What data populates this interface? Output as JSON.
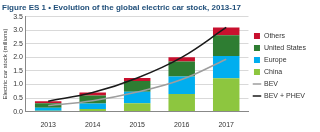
{
  "chart_data": {
    "type": "bar",
    "stacked": true,
    "title": "Figure ES 1 • Evolution of the global electric car stock, 2013-17",
    "y_label": "Electric car stock (millions)",
    "categories": [
      "2013",
      "2014",
      "2015",
      "2016",
      "2017"
    ],
    "series": [
      {
        "name": "China",
        "color": "#8dc63f",
        "type": "bar",
        "values": [
          0.03,
          0.1,
          0.31,
          0.65,
          1.23
        ]
      },
      {
        "name": "Europe",
        "color": "#00aeef",
        "type": "bar",
        "values": [
          0.11,
          0.2,
          0.42,
          0.64,
          0.82
        ]
      },
      {
        "name": "United States",
        "color": "#2e7d32",
        "type": "bar",
        "values": [
          0.17,
          0.29,
          0.4,
          0.56,
          0.76
        ]
      },
      {
        "name": "Others",
        "color": "#c8102e",
        "type": "bar",
        "values": [
          0.07,
          0.11,
          0.11,
          0.15,
          0.29
        ]
      },
      {
        "name": "BEV",
        "color": "#9e9e9e",
        "type": "line",
        "line_style": "solid",
        "values": [
          0.22,
          0.4,
          0.72,
          1.18,
          1.93
        ]
      },
      {
        "name": "BEV + PHEV",
        "color": "#1a1a1a",
        "type": "line",
        "line_style": "solid",
        "values": [
          0.38,
          0.7,
          1.24,
          2.0,
          3.1
        ]
      }
    ],
    "ylim": [
      0,
      3.5
    ],
    "yticks": [
      {
        "value": 0,
        "label": "0.0"
      },
      0.5,
      {
        "value": 1,
        "label": "1.0"
      },
      1.5,
      {
        "value": 2,
        "label": "2.0"
      },
      2.5,
      {
        "value": 3,
        "label": "3.0"
      },
      3.5
    ],
    "grid": true,
    "legend": "right"
  }
}
